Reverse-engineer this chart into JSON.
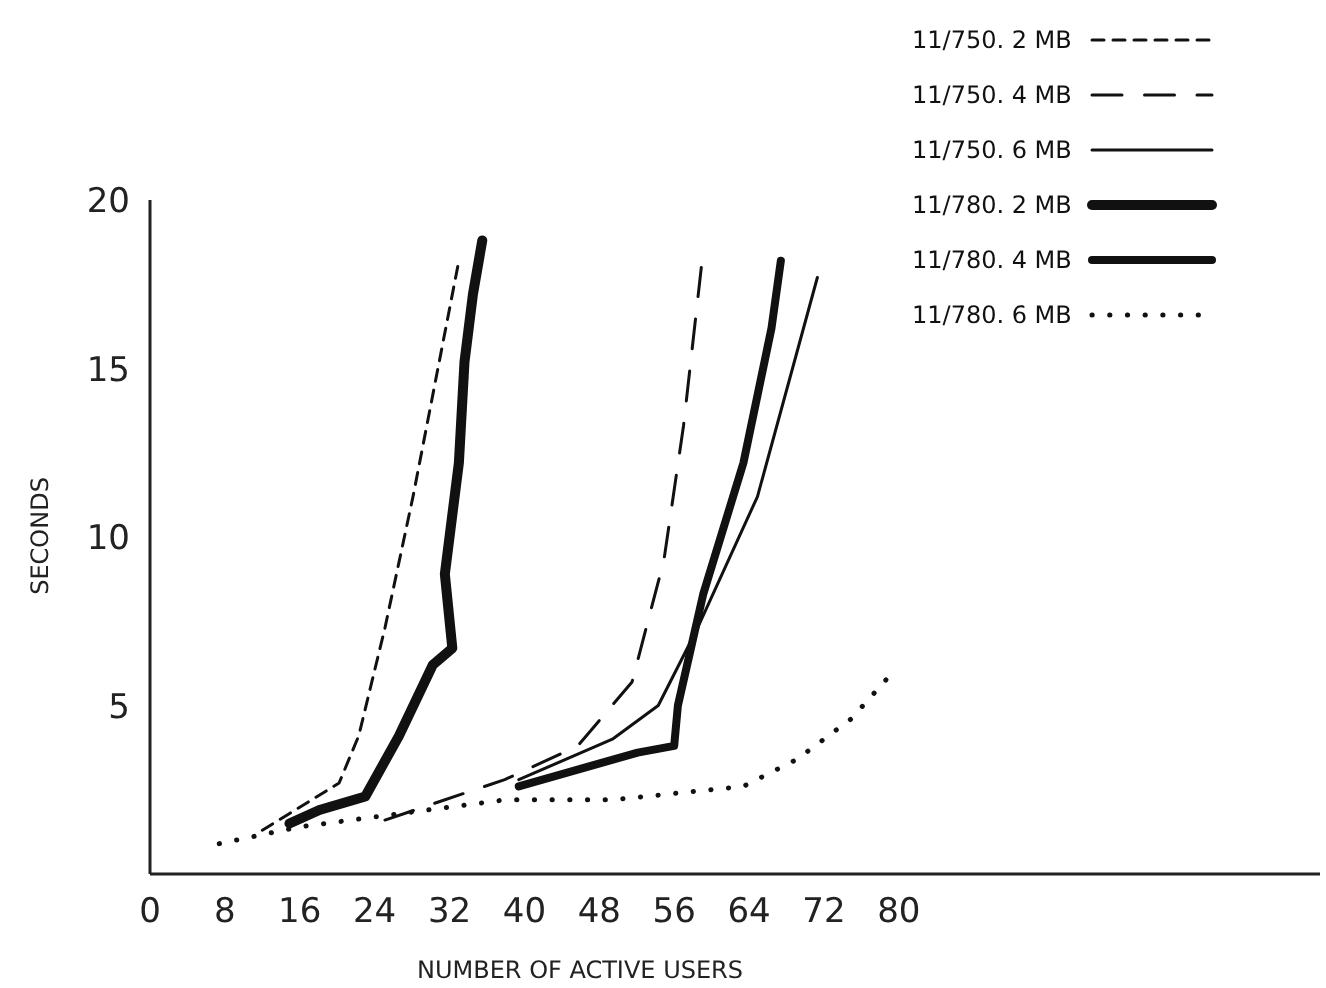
{
  "chart_data": {
    "type": "line",
    "xlabel": "NUMBER OF ACTIVE USERS",
    "ylabel": "SECONDS",
    "xlim": [
      0,
      125
    ],
    "ylim": [
      0,
      20
    ],
    "xticks": [
      0,
      8,
      16,
      24,
      32,
      40,
      48,
      56,
      64,
      72,
      80
    ],
    "yticks": [
      5,
      10,
      15,
      20
    ],
    "legend": "top right",
    "grid": false,
    "series": [
      {
        "name": "11/750. 2 MB",
        "color": "#111111",
        "line_style": "dashed",
        "x": [
          12,
          20.2,
          22.3,
          25.1,
          28.1,
          30.9,
          33
        ],
        "values": [
          1.3,
          2.7,
          4.1,
          7.3,
          11.2,
          15.2,
          18.2
        ]
      },
      {
        "name": "11/750. 4 MB",
        "color": "#111111",
        "line_style": "dashed",
        "x": [
          25.1,
          37.9,
          45.7,
          51.5,
          54.9,
          57,
          58.9
        ],
        "values": [
          1.6,
          2.8,
          3.8,
          5.7,
          9.3,
          13.3,
          18
        ]
      },
      {
        "name": "11/750. 6 MB",
        "color": "#111111",
        "line_style": "solid",
        "x": [
          39.4,
          49.4,
          54.3,
          58.5,
          64.9,
          71.3
        ],
        "values": [
          2.8,
          4,
          5,
          7.3,
          11.2,
          17.7
        ]
      },
      {
        "name": "11/780. 2 MB",
        "color": "#111111",
        "line_style": "solid",
        "x": [
          14.9,
          18.1,
          23,
          26.6,
          30.2,
          32.3,
          31.5,
          33,
          33.6,
          34.5,
          35.5
        ],
        "values": [
          1.5,
          1.9,
          2.3,
          4.1,
          6.2,
          6.7,
          8.9,
          12.2,
          15.2,
          17.2,
          18.8
        ]
      },
      {
        "name": "11/780. 4 MB",
        "color": "#111111",
        "line_style": "solid",
        "x": [
          39.4,
          45.7,
          52.1,
          56,
          56.4,
          59.1,
          63.4,
          66.4,
          67.4
        ],
        "values": [
          2.6,
          3.1,
          3.6,
          3.8,
          5,
          8.3,
          12.2,
          16.2,
          18.2
        ]
      },
      {
        "name": "11/780. 6 MB",
        "color": "#111111",
        "line_style": "dotted",
        "x": [
          7.4,
          16,
          37.9,
          49.4,
          63.4,
          69.1,
          74.9,
          79.4
        ],
        "values": [
          0.9,
          1.4,
          2.2,
          2.2,
          2.6,
          3.4,
          4.6,
          6
        ]
      }
    ]
  }
}
